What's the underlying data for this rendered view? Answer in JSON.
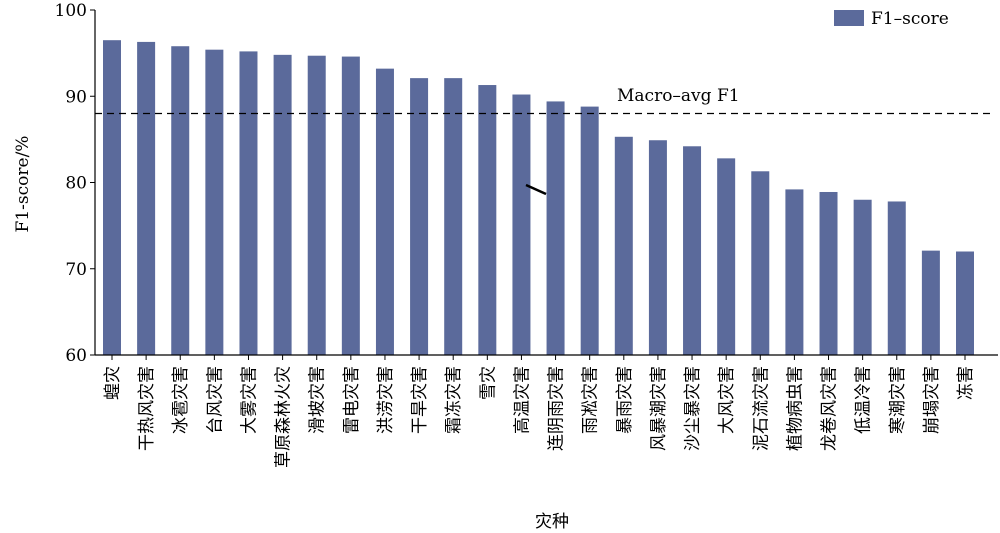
{
  "chart_data": {
    "type": "bar",
    "xlabel": "灾种",
    "ylabel": "F1-score/%",
    "ylim": [
      60,
      100
    ],
    "yticks": [
      60,
      70,
      80,
      90,
      100
    ],
    "grid": false,
    "legend": {
      "position": "top-right",
      "entries": [
        "F1–score"
      ]
    },
    "categories": [
      "蝗灾",
      "干热风灾害",
      "冰雹灾害",
      "台风灾害",
      "大雾灾害",
      "草原森林火灾",
      "滑坡灾害",
      "雷电灾害",
      "洪涝灾害",
      "干旱灾害",
      "霜冻灾害",
      "雪灾",
      "高温灾害",
      "连阴雨灾害",
      "雨凇灾害",
      "暴雨灾害",
      "风暴潮灾害",
      "沙尘暴灾害",
      "大风灾害",
      "泥石流灾害",
      "植物病虫害",
      "龙卷风灾害",
      "低温冷害",
      "寒潮灾害",
      "崩塌灾害",
      "冻害"
    ],
    "series": [
      {
        "name": "F1–score",
        "color": "#5b6a9b",
        "values": [
          96.5,
          96.3,
          95.8,
          95.4,
          95.2,
          94.8,
          94.7,
          94.6,
          93.2,
          92.1,
          92.1,
          91.3,
          90.2,
          89.4,
          88.8,
          85.3,
          84.9,
          84.2,
          82.8,
          81.3,
          79.2,
          78.9,
          78.0,
          77.8,
          72.1,
          72.0
        ]
      }
    ],
    "reference_line": {
      "label": "Macro–avg F1",
      "value": 88.0,
      "style": "dashed"
    }
  }
}
